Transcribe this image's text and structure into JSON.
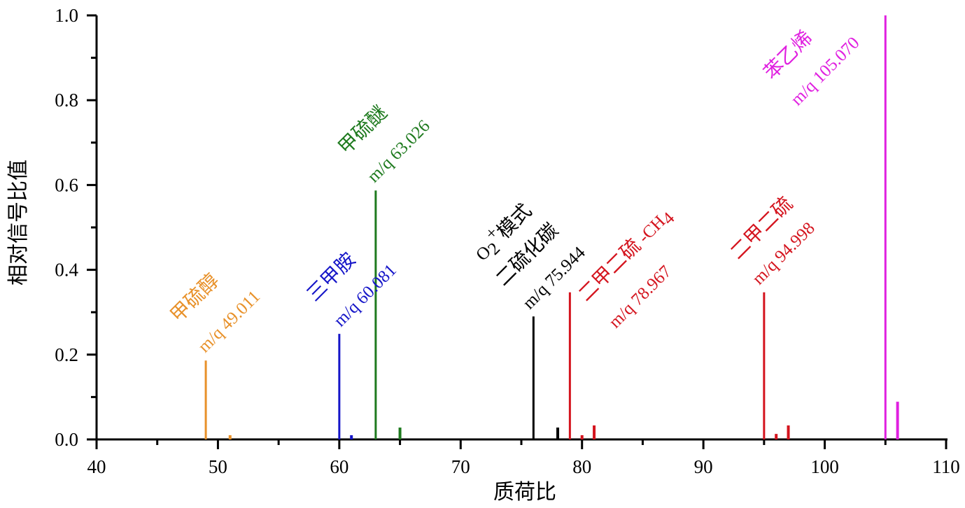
{
  "chart_data": {
    "type": "bar",
    "subtype": "stick-spectrum",
    "title": "",
    "xlabel": "质荷比",
    "ylabel": "相对信号比值",
    "xlim": [
      40,
      110
    ],
    "ylim": [
      0,
      1.0
    ],
    "x_ticks": [
      40,
      50,
      60,
      70,
      80,
      90,
      100,
      110
    ],
    "x_tick_labels": [
      "40",
      "50",
      "60",
      "70",
      "80",
      "90",
      "100",
      "110"
    ],
    "x_minor_ticks": [
      45,
      55,
      65,
      75,
      85,
      95,
      105
    ],
    "y_ticks": [
      0.0,
      0.2,
      0.4,
      0.6,
      0.8,
      1.0
    ],
    "y_tick_labels": [
      "0.0",
      "0.2",
      "0.4",
      "0.6",
      "0.8",
      "1.0"
    ],
    "y_minor_ticks": [
      0.1,
      0.3,
      0.5,
      0.7,
      0.9
    ],
    "grid": false,
    "legend": null,
    "series": [
      {
        "name": "甲硫醇",
        "color": "#E8912A",
        "x": [
          49,
          51
        ],
        "values": [
          0.186,
          0.01
        ]
      },
      {
        "name": "三甲胺",
        "color": "#1515C8",
        "x": [
          60,
          61
        ],
        "values": [
          0.249,
          0.01
        ]
      },
      {
        "name": "甲硫醚",
        "color": "#1E7A1E",
        "x": [
          63,
          65
        ],
        "values": [
          0.587,
          0.028
        ]
      },
      {
        "name": "O2+模式 二硫化碳",
        "color": "#000000",
        "x": [
          76,
          78
        ],
        "values": [
          0.29,
          0.028
        ]
      },
      {
        "name": "二甲二硫 -CH4",
        "color": "#D4141E",
        "x": [
          79,
          80,
          81
        ],
        "values": [
          0.347,
          0.01,
          0.033
        ]
      },
      {
        "name": "二甲二硫",
        "color": "#D4141E",
        "x": [
          95,
          96,
          97
        ],
        "values": [
          0.347,
          0.013,
          0.033
        ]
      },
      {
        "name": "苯乙烯",
        "color": "#E020E0",
        "x": [
          105,
          106
        ],
        "values": [
          1.0,
          0.089
        ]
      }
    ],
    "annotations": [
      {
        "name": "甲硫醇",
        "mz": "m/q 49.011",
        "color": "#E8912A",
        "anchor_x": 49
      },
      {
        "name": "三甲胺",
        "mz": "m/q 60.081",
        "color": "#1515C8",
        "anchor_x": 60
      },
      {
        "name": "甲硫醚",
        "mz": "m/q 63.026",
        "color": "#1E7A1E",
        "anchor_x": 63
      },
      {
        "name_prefix": "O",
        "name_sub": "2",
        "name_sup": "+",
        "name_mode": "模式",
        "name": "二硫化碳",
        "mz": "m/q 75.944",
        "color": "#000000",
        "anchor_x": 76
      },
      {
        "name": "二甲二硫",
        "name_suffix": " -CH",
        "name_suffix_sub": "4",
        "mz": "m/q 78.967",
        "color": "#D4141E",
        "anchor_x": 79
      },
      {
        "name": "二甲二硫",
        "mz": "m/q 94.998",
        "color": "#D4141E",
        "anchor_x": 95
      },
      {
        "name": "苯乙烯",
        "mz": "m/q 105.070",
        "color": "#E020E0",
        "anchor_x": 105
      }
    ]
  }
}
